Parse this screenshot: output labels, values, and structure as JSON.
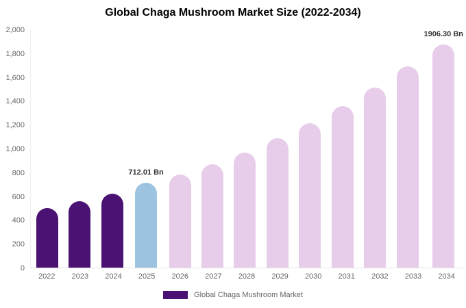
{
  "chart_data": {
    "type": "bar",
    "title": "Global Chaga Mushroom Market Size (2022-2034)",
    "categories": [
      "2022",
      "2023",
      "2024",
      "2025",
      "2026",
      "2027",
      "2028",
      "2029",
      "2030",
      "2031",
      "2032",
      "2033",
      "2034"
    ],
    "values": [
      500,
      555,
      620,
      712.01,
      780,
      870,
      965,
      1085,
      1215,
      1355,
      1510,
      1690,
      1906.3
    ],
    "bar_colors": [
      "#4a1272",
      "#4a1272",
      "#4a1272",
      "#9cc3e0",
      "#e8cdea",
      "#e8cdea",
      "#e8cdea",
      "#e8cdea",
      "#e8cdea",
      "#e8cdea",
      "#e8cdea",
      "#e8cdea",
      "#e8cdea"
    ],
    "annotations": {
      "2025": "712.01 Bn",
      "2034": "1906.30 Bn"
    },
    "ylim": [
      0,
      2000
    ],
    "yticks": [
      0,
      200,
      400,
      600,
      800,
      1000,
      1200,
      1400,
      1600,
      1800,
      2000
    ],
    "ytick_labels": [
      "0",
      "200",
      "400",
      "600",
      "800",
      "1,000",
      "1,200",
      "1,400",
      "1,600",
      "1,800",
      "2,000"
    ],
    "xlabel": "",
    "ylabel": "",
    "grid": false,
    "legend": {
      "position": "bottom",
      "label": "Global Chaga Mushroom Market",
      "swatch_color": "#4a1272"
    },
    "colors": {
      "historical_purple": "#4a1272",
      "base_year_blue": "#9cc3e0",
      "forecast_pink": "#e8cdea",
      "axis_text": "#666666",
      "annotation_text": "#333333"
    }
  }
}
